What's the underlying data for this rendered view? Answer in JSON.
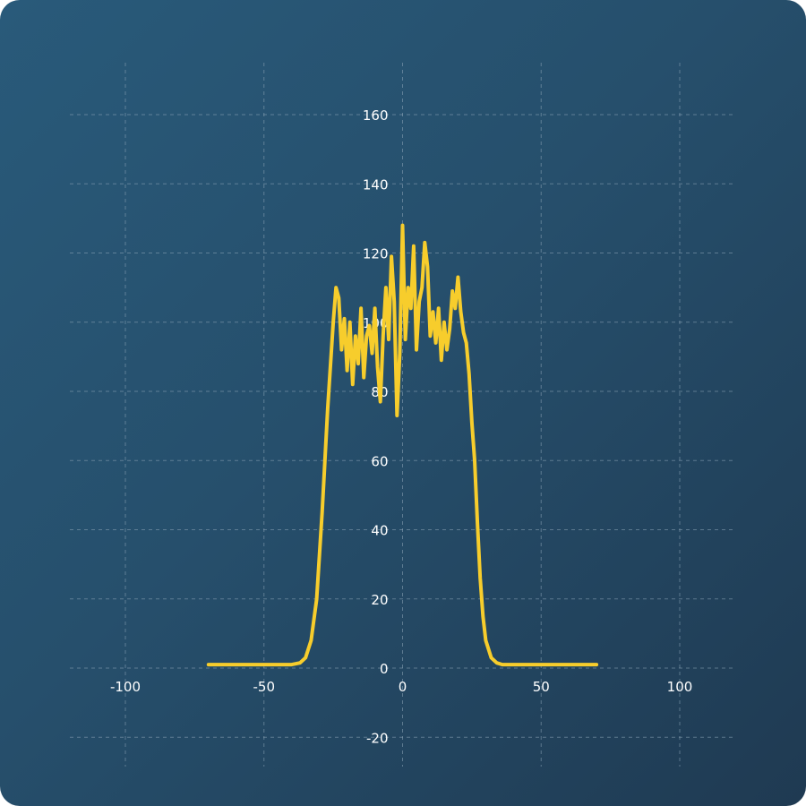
{
  "chart_data": {
    "type": "line",
    "title": "",
    "xlabel": "",
    "ylabel": "",
    "xlim": [
      -110,
      120
    ],
    "ylim": [
      -20,
      160
    ],
    "x_ticks": [
      -100,
      -50,
      0,
      50,
      100
    ],
    "y_ticks": [
      -20,
      0,
      20,
      40,
      60,
      80,
      100,
      120,
      140,
      160
    ],
    "grid": true,
    "legend": "none",
    "colors": {
      "series": "#f7cd2c",
      "background": "#264f6c",
      "grid": "#8ea6b8",
      "text": "#ffffff"
    },
    "series": [
      {
        "x": [
          -70,
          -60,
          -50,
          -45,
          -40,
          -37,
          -35,
          -33,
          -31,
          -29,
          -27,
          -25,
          -24,
          -23,
          -22,
          -21,
          -20,
          -19,
          -18,
          -17,
          -16,
          -15,
          -14,
          -13,
          -12,
          -11,
          -10,
          -9,
          -8,
          -7,
          -6,
          -5,
          -4,
          -3,
          -2,
          -1,
          0,
          1,
          2,
          3,
          4,
          5,
          6,
          7,
          8,
          9,
          10,
          11,
          12,
          13,
          14,
          15,
          16,
          17,
          18,
          19,
          20,
          21,
          22,
          23,
          24,
          25,
          26,
          27,
          28,
          29,
          30,
          32,
          34,
          36,
          40,
          45,
          50,
          60,
          70
        ],
        "y": [
          1,
          1,
          1,
          1,
          1,
          1.5,
          3,
          8,
          20,
          45,
          75,
          100,
          110,
          107,
          92,
          101,
          86,
          100,
          82,
          96,
          88,
          104,
          84,
          96,
          99,
          91,
          104,
          87,
          77,
          96,
          110,
          95,
          119,
          106,
          73,
          91,
          128,
          95,
          110,
          104,
          122,
          92,
          106,
          110,
          123,
          116,
          96,
          103,
          94,
          104,
          89,
          100,
          92,
          98,
          109,
          104,
          113,
          103,
          97,
          94,
          85,
          71,
          60,
          42,
          26,
          15,
          8,
          3,
          1.5,
          1,
          1,
          1,
          1,
          1,
          1
        ]
      }
    ]
  }
}
